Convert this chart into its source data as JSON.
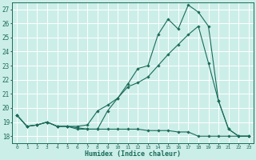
{
  "xlabel": "Humidex (Indice chaleur)",
  "background_color": "#cceee8",
  "grid_color": "#ffffff",
  "line_color": "#1a6b5a",
  "xlim": [
    -0.5,
    23.5
  ],
  "ylim": [
    17.5,
    27.5
  ],
  "xticks": [
    0,
    1,
    2,
    3,
    4,
    5,
    6,
    7,
    8,
    9,
    10,
    11,
    12,
    13,
    14,
    15,
    16,
    17,
    18,
    19,
    20,
    21,
    22,
    23
  ],
  "yticks": [
    18,
    19,
    20,
    21,
    22,
    23,
    24,
    25,
    26,
    27
  ],
  "line1_x": [
    0,
    1,
    2,
    3,
    4,
    5,
    6,
    7,
    8,
    9,
    10,
    11,
    12,
    13,
    14,
    15,
    16,
    17,
    18,
    19,
    20,
    21,
    22,
    23
  ],
  "line1_y": [
    19.5,
    18.7,
    18.8,
    19.0,
    18.7,
    18.7,
    18.5,
    18.5,
    18.5,
    19.8,
    20.7,
    21.7,
    22.8,
    23.0,
    25.2,
    26.3,
    25.6,
    27.3,
    26.8,
    25.8,
    20.5,
    18.5,
    18.0,
    18.0
  ],
  "line2_x": [
    0,
    1,
    2,
    3,
    4,
    5,
    6,
    7,
    8,
    9,
    10,
    11,
    12,
    13,
    14,
    15,
    16,
    17,
    18,
    19,
    20,
    21,
    22,
    23
  ],
  "line2_y": [
    19.5,
    18.7,
    18.8,
    19.0,
    18.7,
    18.7,
    18.7,
    18.8,
    19.8,
    20.2,
    20.7,
    21.5,
    21.8,
    22.2,
    23.0,
    23.8,
    24.5,
    25.2,
    25.8,
    23.2,
    20.5,
    18.5,
    18.0,
    18.0
  ],
  "line3_x": [
    0,
    1,
    2,
    3,
    4,
    5,
    6,
    7,
    8,
    9,
    10,
    11,
    12,
    13,
    14,
    15,
    16,
    17,
    18,
    19,
    20,
    21,
    22,
    23
  ],
  "line3_y": [
    19.5,
    18.7,
    18.8,
    19.0,
    18.7,
    18.7,
    18.6,
    18.5,
    18.5,
    18.5,
    18.5,
    18.5,
    18.5,
    18.4,
    18.4,
    18.4,
    18.3,
    18.3,
    18.0,
    18.0,
    18.0,
    18.0,
    18.0,
    18.0
  ]
}
